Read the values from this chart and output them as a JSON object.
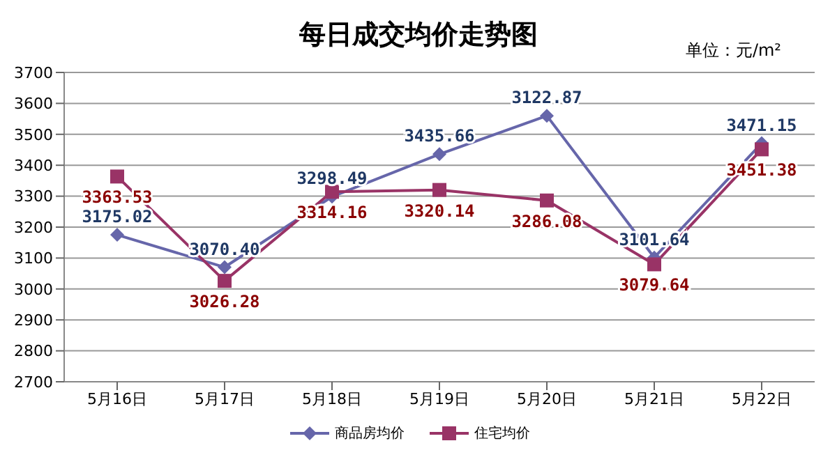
{
  "chart_data": {
    "type": "line",
    "title": "每日成交均价走势图",
    "annotations": [
      "单位：元/m²",
      {
        "text": "3122.87",
        "x": "5月20日",
        "y": 3560
      }
    ],
    "categories": [
      "5月16日",
      "5月17日",
      "5月18日",
      "5月19日",
      "5月20日",
      "5月21日",
      "5月22日"
    ],
    "series": [
      {
        "name": "商品房均价",
        "color": "#6666aa",
        "marker": "diamond",
        "values": [
          3175.02,
          3070.4,
          3298.49,
          3435.66,
          3560,
          3101.64,
          3471.15
        ],
        "value_labels": [
          "3175.02",
          "3070.40",
          "3298.49",
          "3435.66",
          null,
          "3101.64",
          "3471.15"
        ]
      },
      {
        "name": "住宅均价",
        "color": "#993366",
        "marker": "square",
        "values": [
          3363.53,
          3026.28,
          3314.16,
          3320.14,
          3286.08,
          3079.64,
          3451.38
        ],
        "value_labels": [
          "3363.53",
          "3026.28",
          "3314.16",
          "3320.14",
          "3286.08",
          "3079.64",
          "3451.38"
        ]
      }
    ],
    "ylim": [
      2700,
      3700
    ],
    "yticks": [
      2700,
      2800,
      2900,
      3000,
      3100,
      3200,
      3300,
      3400,
      3500,
      3600,
      3700
    ],
    "grid": "y",
    "legend": "bottom",
    "line_style": "solid"
  }
}
